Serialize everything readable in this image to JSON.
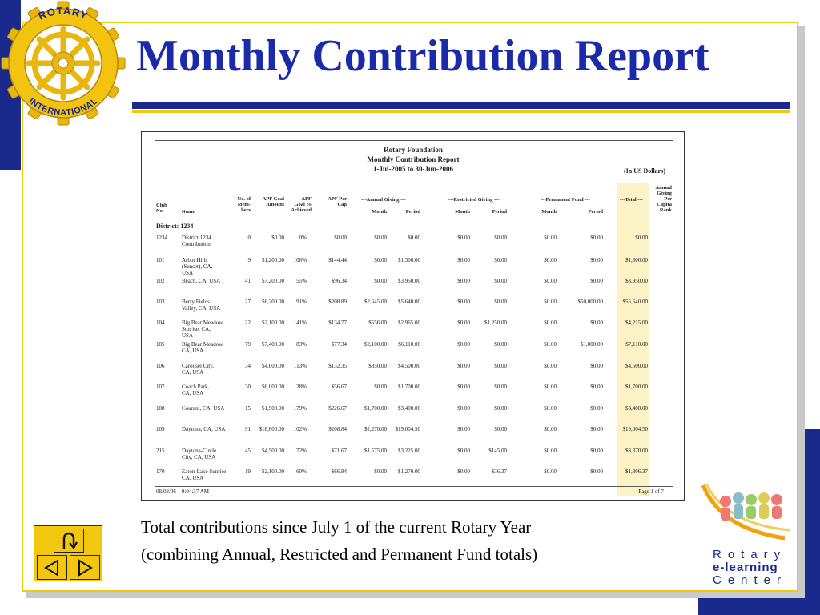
{
  "slide": {
    "title": "Monthly Contribution Report",
    "caption_line1": "Total contributions since July 1 of the current Rotary Year",
    "caption_line2": "(combining Annual, Restricted and Permanent Fund totals)"
  },
  "logo": {
    "ring_top": "ROTARY",
    "ring_bottom": "INTERNATIONAL"
  },
  "elearning": {
    "line1": "Rotary",
    "line2": "e-learning",
    "line3": "Center"
  },
  "report": {
    "org": "Rotary Foundation",
    "name": "Monthly Contribution Report",
    "period": "1-Jul-2005 to 30-Jun-2006",
    "currency": "(In US Dollars)",
    "group_annual": "---Annual Giving ---",
    "group_restricted": "---Restricted Giving ---",
    "group_permanent": "---Permanent Fund ---",
    "district": "District: 1234",
    "footer_date": "08/02/06",
    "footer_time": "9:04:37 AM",
    "footer_page": "Page 1 of 7",
    "columns": {
      "club_no_a": "Club",
      "club_no_b": "No",
      "name": "Name",
      "members_a": "No. of",
      "members_b": "Mem-",
      "members_c": "bers",
      "goal_a": "APF Goal",
      "goal_b": "Amount",
      "goal_pct_a": "APF",
      "goal_pct_b": "Goal %",
      "goal_pct_c": "Achieved",
      "per_cap_a": "APF Per",
      "per_cap_b": "Cap",
      "month": "Month",
      "period": "Period",
      "total": "---Total ---",
      "rank_a": "Annual",
      "rank_b": "Giving",
      "rank_c": "Per",
      "rank_d": "Capita",
      "rank_e": "Rank"
    },
    "rows": [
      {
        "no": "1234",
        "name": [
          "District 1234",
          "Contribution"
        ],
        "members": "0",
        "goal": "$0.00",
        "pct": "0%",
        "percap": "$0.00",
        "am": "$0.00",
        "ap": "$0.00",
        "rm": "$0.00",
        "rp": "$0.00",
        "pm": "$0.00",
        "pp": "$0.00",
        "total": "$0.00"
      },
      {
        "no": "101",
        "name": [
          "Arbor Hills",
          "(Sunset), CA,",
          "USA"
        ],
        "members": "9",
        "goal": "$1,200.00",
        "pct": "108%",
        "percap": "$144.44",
        "am": "$0.00",
        "ap": "$1,300.00",
        "rm": "$0.00",
        "rp": "$0.00",
        "pm": "$0.00",
        "pp": "$0.00",
        "total": "$1,300.00"
      },
      {
        "no": "102",
        "name": [
          "Beach, CA, USA"
        ],
        "members": "41",
        "goal": "$7,200.00",
        "pct": "55%",
        "percap": "$96.34",
        "am": "$0.00",
        "ap": "$3,950.00",
        "rm": "$0.00",
        "rp": "$0.00",
        "pm": "$0.00",
        "pp": "$0.00",
        "total": "$3,950.00"
      },
      {
        "no": "103",
        "name": [
          "Berry Fields",
          "Valley, CA, USA"
        ],
        "members": "27",
        "goal": "$6,200.00",
        "pct": "91%",
        "percap": "$208.89",
        "am": "$2,645.00",
        "ap": "$5,640.00",
        "rm": "$0.00",
        "rp": "$0.00",
        "pm": "$0.00",
        "pp": "$50,000.00",
        "total": "$55,640.00"
      },
      {
        "no": "104",
        "name": [
          "Big Bear Meadow",
          "Sunrise, CA,",
          "USA"
        ],
        "members": "22",
        "goal": "$2,100.00",
        "pct": "141%",
        "percap": "$134.77",
        "am": "$556.00",
        "ap": "$2,965.00",
        "rm": "$0.00",
        "rp": "$1,250.00",
        "pm": "$0.00",
        "pp": "$0.00",
        "total": "$4,215.00"
      },
      {
        "no": "105",
        "name": [
          "Big Bear Meadow,",
          "CA, USA"
        ],
        "members": "79",
        "goal": "$7,400.00",
        "pct": "83%",
        "percap": "$77.34",
        "am": "$2,100.00",
        "ap": "$6,110.00",
        "rm": "$0.00",
        "rp": "$0.00",
        "pm": "$0.00",
        "pp": "$1,000.00",
        "total": "$7,110.00"
      },
      {
        "no": "106",
        "name": [
          "Carousel City,",
          "CA, USA"
        ],
        "members": "34",
        "goal": "$4,000.00",
        "pct": "113%",
        "percap": "$132.35",
        "am": "$850.00",
        "ap": "$4,500.00",
        "rm": "$0.00",
        "rp": "$0.00",
        "pm": "$0.00",
        "pp": "$0.00",
        "total": "$4,500.00"
      },
      {
        "no": "107",
        "name": [
          "Coach Park,",
          "CA, USA"
        ],
        "members": "30",
        "goal": "$6,000.00",
        "pct": "28%",
        "percap": "$56.67",
        "am": "$0.00",
        "ap": "$1,700.00",
        "rm": "$0.00",
        "rp": "$0.00",
        "pm": "$0.00",
        "pp": "$0.00",
        "total": "$1,700.00"
      },
      {
        "no": "108",
        "name": [
          "Courant, CA, USA"
        ],
        "members": "15",
        "goal": "$1,900.00",
        "pct": "179%",
        "percap": "$226.67",
        "am": "$1,700.00",
        "ap": "$3,400.00",
        "rm": "$0.00",
        "rp": "$0.00",
        "pm": "$0.00",
        "pp": "$0.00",
        "total": "$3,400.00"
      },
      {
        "no": "109",
        "name": [
          "Daytona, CA, USA"
        ],
        "members": "91",
        "goal": "$18,600.00",
        "pct": "102%",
        "percap": "$208.84",
        "am": "$2,270.00",
        "ap": "$19,004.50",
        "rm": "$0.00",
        "rp": "$0.00",
        "pm": "$0.00",
        "pp": "$0.00",
        "total": "$19,004.50"
      },
      {
        "no": "215",
        "name": [
          "Daytona-Circle",
          "City, CA, USA"
        ],
        "members": "45",
        "goal": "$4,500.00",
        "pct": "72%",
        "percap": "$71.67",
        "am": "$1,575.00",
        "ap": "$3,225.00",
        "rm": "$0.00",
        "rp": "$145.00",
        "pm": "$0.00",
        "pp": "$0.00",
        "total": "$3,370.00"
      },
      {
        "no": "170",
        "name": [
          "Eaton-Lake Sunrise,",
          "CA, USA"
        ],
        "members": "19",
        "goal": "$2,100.00",
        "pct": "60%",
        "percap": "$66.84",
        "am": "$0.00",
        "ap": "$1,270.00",
        "rm": "$0.00",
        "rp": "$36.37",
        "pm": "$0.00",
        "pp": "$0.00",
        "total": "$1,306.37"
      }
    ]
  },
  "nav": {
    "return_icon": "u-turn-return-icon",
    "prev_icon": "triangle-left-icon",
    "next_icon": "triangle-right-icon"
  },
  "colors": {
    "navy": "#1a2a8c",
    "title_blue": "#1a2aa8",
    "gold": "#f2c80f",
    "total_highlight": "#fbf2c6"
  }
}
